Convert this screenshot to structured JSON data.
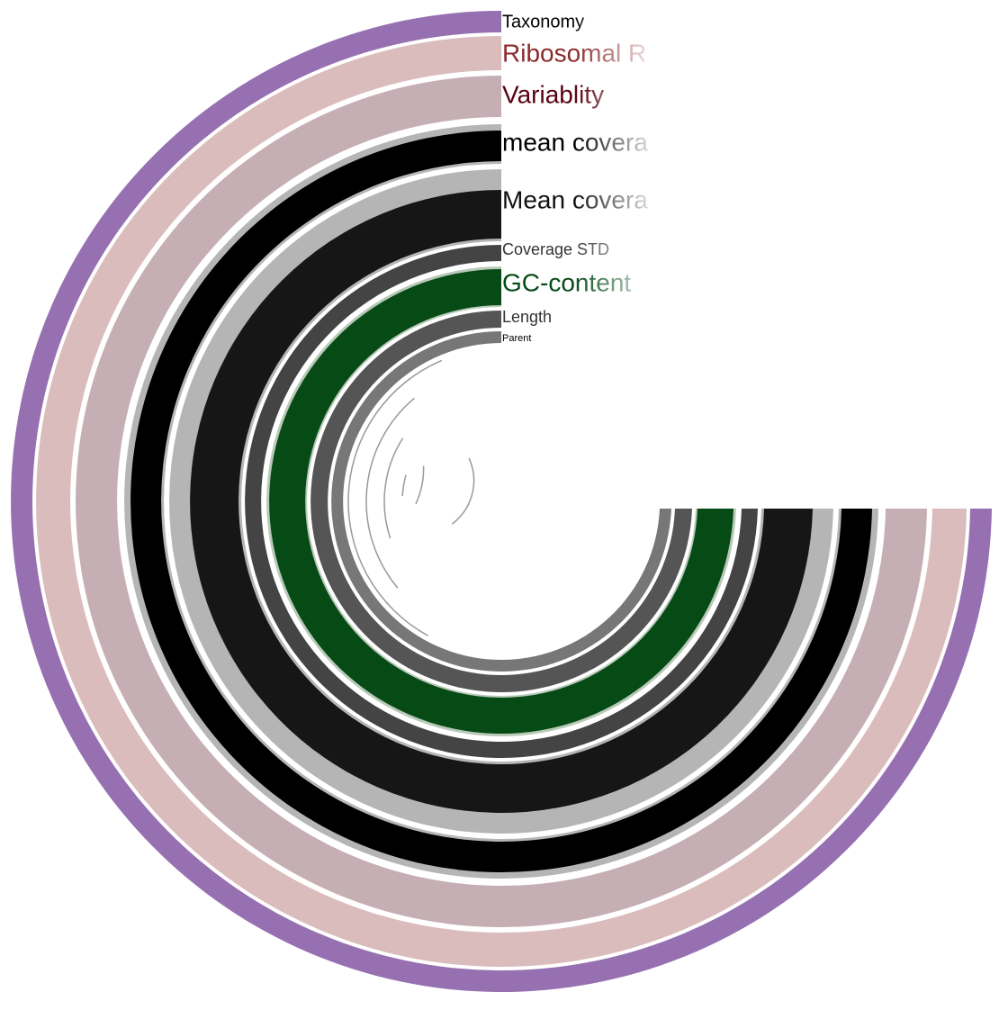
{
  "layers": [
    {
      "label": "Taxonomy"
    },
    {
      "label": "Ribosomal R"
    },
    {
      "label": "Variablity"
    },
    {
      "label": "mean covera"
    },
    {
      "label": "Mean covera"
    },
    {
      "label": "Coverage STD"
    },
    {
      "label": "GC-content"
    },
    {
      "label": "Length"
    },
    {
      "label": "Parent"
    }
  ]
}
